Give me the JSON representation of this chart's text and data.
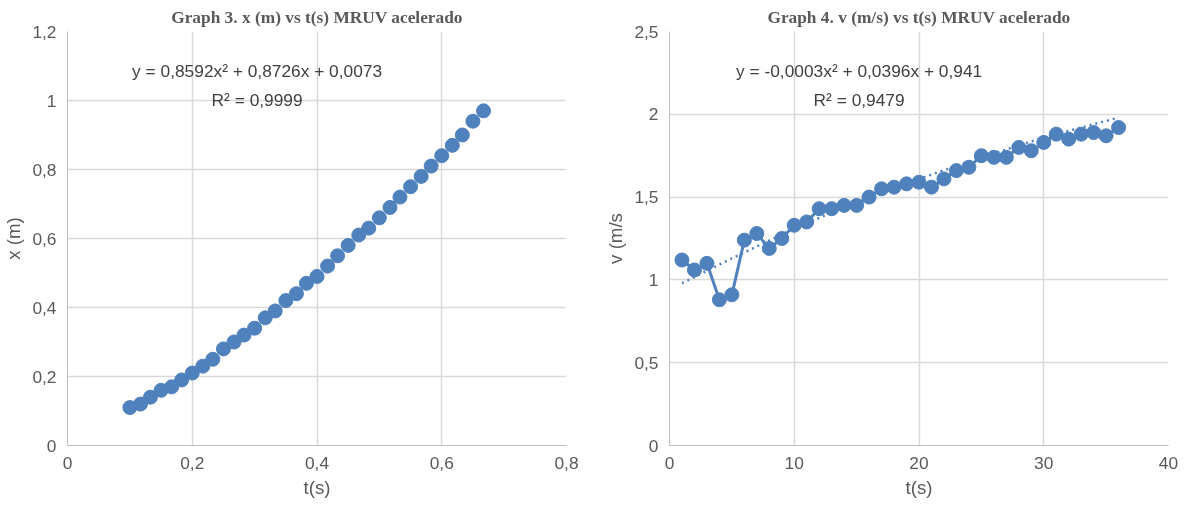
{
  "chart_data": [
    {
      "type": "scatter",
      "title": "Graph 3. x (m) vs t(s) MRUV acelerado",
      "xlabel": "t(s)",
      "ylabel": "x (m)",
      "marker": "circle",
      "grid": true,
      "x": [
        0.1,
        0.117,
        0.133,
        0.15,
        0.167,
        0.183,
        0.2,
        0.217,
        0.233,
        0.25,
        0.267,
        0.283,
        0.3,
        0.317,
        0.333,
        0.35,
        0.367,
        0.383,
        0.4,
        0.417,
        0.433,
        0.45,
        0.467,
        0.483,
        0.5,
        0.517,
        0.533,
        0.55,
        0.567,
        0.583,
        0.6,
        0.617,
        0.633,
        0.65,
        0.667
      ],
      "series": [
        {
          "color": "#4f81bd",
          "values": [
            0.11,
            0.12,
            0.14,
            0.16,
            0.17,
            0.19,
            0.21,
            0.23,
            0.25,
            0.28,
            0.3,
            0.32,
            0.34,
            0.37,
            0.39,
            0.42,
            0.44,
            0.47,
            0.49,
            0.52,
            0.55,
            0.58,
            0.61,
            0.63,
            0.66,
            0.69,
            0.72,
            0.75,
            0.78,
            0.81,
            0.84,
            0.87,
            0.9,
            0.94,
            0.97
          ]
        }
      ],
      "xlim": [
        0,
        0.8
      ],
      "ylim": [
        0,
        1.2
      ],
      "xticks": [
        0,
        {
          "value": 0.2,
          "label": "0,2"
        },
        {
          "value": 0.4,
          "label": "0,4"
        },
        {
          "value": 0.6,
          "label": "0,6"
        },
        {
          "value": 0.8,
          "label": "0,8"
        }
      ],
      "yticks": [
        0,
        {
          "value": 0.2,
          "label": "0,2"
        },
        {
          "value": 0.4,
          "label": "0,4"
        },
        {
          "value": 0.6,
          "label": "0,6"
        },
        {
          "value": 0.8,
          "label": "0,8"
        },
        1,
        {
          "value": 1.2,
          "label": "1,2"
        }
      ],
      "annotations": [
        "y = 0,8592x² + 0,8726x + 0,0073",
        "R² = 0,9999"
      ]
    },
    {
      "type": "line",
      "title": "Graph 4. v (m/s) vs t(s) MRUV acelerado",
      "xlabel": "t(s)",
      "ylabel": "v (m/s",
      "marker": "circle",
      "line_style": "solid",
      "grid": true,
      "x": [
        1,
        2,
        3,
        4,
        5,
        6,
        7,
        8,
        9,
        10,
        11,
        12,
        13,
        14,
        15,
        16,
        17,
        18,
        19,
        20,
        21,
        22,
        23,
        24,
        25,
        26,
        27,
        28,
        29,
        30,
        31,
        32,
        33,
        34,
        35,
        36
      ],
      "series": [
        {
          "color": "#4f81bd",
          "values": [
            1.12,
            1.06,
            1.1,
            0.88,
            0.91,
            1.24,
            1.28,
            1.19,
            1.25,
            1.33,
            1.35,
            1.43,
            1.43,
            1.45,
            1.45,
            1.5,
            1.55,
            1.56,
            1.58,
            1.59,
            1.56,
            1.61,
            1.66,
            1.68,
            1.75,
            1.74,
            1.74,
            1.8,
            1.78,
            1.83,
            1.88,
            1.85,
            1.88,
            1.89,
            1.87,
            1.92
          ]
        },
        {
          "type": "line",
          "marker": "none",
          "line_style": "dotted",
          "color": "#4f81bd",
          "x": [
            1,
            5,
            10,
            15,
            20,
            25,
            30,
            36
          ],
          "values": [
            0.98,
            1.13,
            1.31,
            1.47,
            1.61,
            1.74,
            1.86,
            1.98
          ]
        }
      ],
      "xlim": [
        0,
        40
      ],
      "ylim": [
        0,
        2.5
      ],
      "xticks": [
        0,
        10,
        20,
        30,
        40
      ],
      "yticks": [
        0,
        {
          "value": 0.5,
          "label": "0,5"
        },
        1,
        {
          "value": 1.5,
          "label": "1,5"
        },
        2,
        {
          "value": 2.5,
          "label": "2,5"
        }
      ],
      "annotations": [
        "y = -0,0003x² + 0,0396x + 0,941",
        "R² = 0,9479"
      ]
    }
  ]
}
